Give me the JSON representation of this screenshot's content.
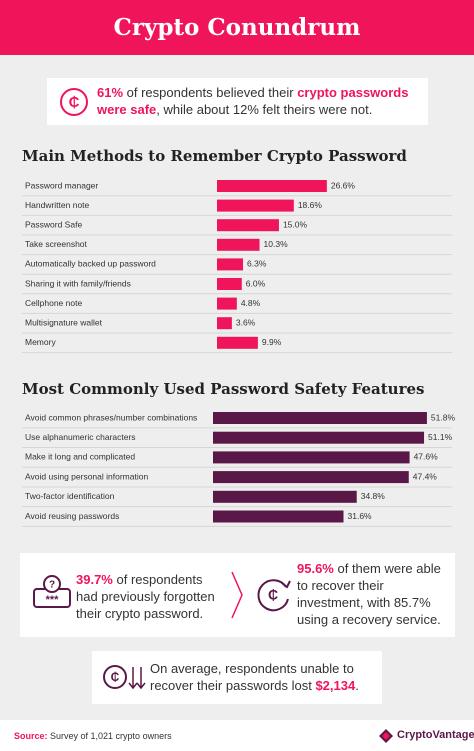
{
  "header": {
    "title": "Crypto Conundrum"
  },
  "callout": {
    "highlight1": "61%",
    "text1": " of respondents believed their ",
    "highlight2": "crypto passwords were safe",
    "text2": ", while about 12% felt theirs were not."
  },
  "chart_data": [
    {
      "type": "bar",
      "title": "Main Methods to Remember Crypto Password",
      "categories": [
        "Password manager",
        "Handwritten note",
        "Password Safe",
        "Take screenshot",
        "Automatically backed up password",
        "Sharing it with family/friends",
        "Cellphone note",
        "Multisignature wallet",
        "Memory"
      ],
      "values": [
        26.6,
        18.6,
        15.0,
        10.3,
        6.3,
        6.0,
        4.8,
        3.6,
        9.9
      ],
      "value_labels": [
        "26.6%",
        "18.6%",
        "15.0%",
        "10.3%",
        "6.3%",
        "6.0%",
        "4.8%",
        "3.6%",
        "9.9%"
      ],
      "color": "#f0145a"
    },
    {
      "type": "bar",
      "title": "Most Commonly Used Password Safety Features",
      "categories": [
        "Avoid common phrases/number combinations",
        "Use alphanumeric characters",
        "Make it long and complicated",
        "Avoid using personal information",
        "Two-factor identification",
        "Avoid reusing passwords"
      ],
      "values": [
        51.8,
        51.1,
        47.6,
        47.4,
        34.8,
        31.6
      ],
      "value_labels": [
        "51.8%",
        "51.1%",
        "47.6%",
        "47.4%",
        "34.8%",
        "31.6%"
      ],
      "color": "#5a1848"
    }
  ],
  "stats": {
    "forgotten": {
      "highlight": "39.7%",
      "text": " of respondents had previously forgotten their crypto password."
    },
    "recovered": {
      "highlight": "95.6%",
      "text": " of them were able to recover their investment, with 85.7% using a recovery service."
    },
    "lost": {
      "text": "On average, respondents unable to recover their passwords lost ",
      "highlight": "$2,134",
      "end": "."
    }
  },
  "footer": {
    "source_label": "Source:",
    "source": " Survey of 1,021 crypto owners",
    "brand": "CryptoVantage"
  }
}
